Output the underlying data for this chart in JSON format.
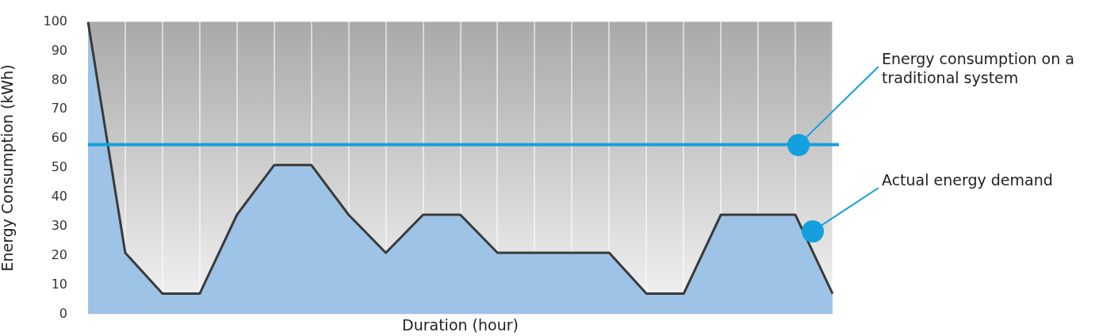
{
  "chart_data": {
    "type": "area",
    "xlabel": "Duration (hour)",
    "ylabel": "Energy Consumption (kWh)",
    "categories": [
      null,
      null,
      null,
      null,
      null,
      null,
      null,
      null,
      null,
      null,
      null,
      null,
      null,
      null,
      null,
      null,
      null,
      null,
      null,
      null,
      null
    ],
    "series": [
      {
        "color": "#3a3a3a",
        "values": [
          100,
          21,
          7,
          7,
          34,
          51,
          51,
          34,
          21,
          34,
          34,
          21,
          21,
          21,
          21,
          7,
          7,
          34,
          34,
          34,
          7
        ]
      }
    ],
    "ylim": [
      0,
      100
    ],
    "yticks": [
      0,
      10,
      20,
      30,
      40,
      50,
      60,
      70,
      80,
      90,
      100
    ],
    "grid": "x",
    "legend": false,
    "marker": "none",
    "line_style": "solid",
    "ref_lines": [
      {
        "axis": "y",
        "value": 58,
        "color": "#14a0dc",
        "line_style": "solid"
      }
    ],
    "annotations": [
      "Energy consumption on a traditional system",
      "Actual energy demand"
    ]
  }
}
